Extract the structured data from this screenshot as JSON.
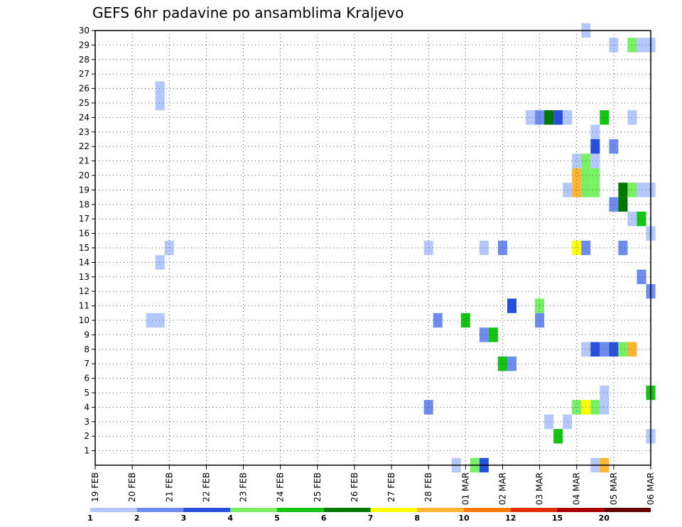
{
  "chart_data": {
    "type": "heatmap",
    "title": "GEFS 6hr padavine po ansamblima Kraljevo",
    "xlabel": "",
    "ylabel": "",
    "x_tick_labels": [
      "19 FEB",
      "20 FEB",
      "21 FEB",
      "22 FEB",
      "23 FEB",
      "24 FEB",
      "25 FEB",
      "26 FEB",
      "27 FEB",
      "28 FEB",
      "01 MAR",
      "02 MAR",
      "03 MAR",
      "04 MAR",
      "05 MAR",
      "06 MAR"
    ],
    "y_tick_labels": [
      "1",
      "2",
      "3",
      "4",
      "5",
      "6",
      "7",
      "8",
      "9",
      "10",
      "11",
      "12",
      "13",
      "14",
      "15",
      "16",
      "17",
      "18",
      "19",
      "20",
      "21",
      "22",
      "23",
      "24",
      "25",
      "26",
      "27",
      "28",
      "29",
      "30"
    ],
    "ylim": [
      0,
      30
    ],
    "grid": true,
    "colorbar": {
      "labels": [
        "1",
        "2",
        "3",
        "4",
        "5",
        "6",
        "7",
        "8",
        "10",
        "12",
        "15",
        "20"
      ],
      "colors": [
        "#b4c8ff",
        "#6e8cf0",
        "#2850dc",
        "#78f064",
        "#14c314",
        "#007800",
        "#ffff00",
        "#ffb432",
        "#ff7800",
        "#e12d00",
        "#aa0000",
        "#640000"
      ]
    },
    "cells": [
      {
        "day": 1.5,
        "member": 10,
        "color": "#b4c8ff",
        "span": 2
      },
      {
        "day": 1.75,
        "member": 25,
        "color": "#b4c8ff"
      },
      {
        "day": 1.75,
        "member": 26,
        "color": "#b4c8ff"
      },
      {
        "day": 1.75,
        "member": 14,
        "color": "#b4c8ff"
      },
      {
        "day": 2.0,
        "member": 15,
        "color": "#b4c8ff"
      },
      {
        "day": 9.0,
        "member": 15,
        "color": "#b4c8ff"
      },
      {
        "day": 9.0,
        "member": 4,
        "color": "#6e8cf0"
      },
      {
        "day": 9.25,
        "member": 10,
        "color": "#6e8cf0"
      },
      {
        "day": 9.75,
        "member": 0,
        "color": "#b4c8ff"
      },
      {
        "day": 10.0,
        "member": 10,
        "color": "#14c314"
      },
      {
        "day": 10.25,
        "member": 0,
        "color": "#78f064"
      },
      {
        "day": 10.5,
        "member": 0,
        "color": "#2850dc"
      },
      {
        "day": 10.5,
        "member": 15,
        "color": "#b4c8ff"
      },
      {
        "day": 10.5,
        "member": 9,
        "color": "#6e8cf0"
      },
      {
        "day": 10.75,
        "member": 9,
        "color": "#14c314"
      },
      {
        "day": 11.0,
        "member": 15,
        "color": "#6e8cf0"
      },
      {
        "day": 11.0,
        "member": 7,
        "color": "#14c314"
      },
      {
        "day": 11.25,
        "member": 7,
        "color": "#6e8cf0"
      },
      {
        "day": 11.25,
        "member": 11,
        "color": "#2850dc"
      },
      {
        "day": 11.75,
        "member": 24,
        "color": "#b4c8ff"
      },
      {
        "day": 12.0,
        "member": 24,
        "color": "#6e8cf0"
      },
      {
        "day": 12.0,
        "member": 11,
        "color": "#78f064"
      },
      {
        "day": 12.0,
        "member": 10,
        "color": "#6e8cf0"
      },
      {
        "day": 12.25,
        "member": 24,
        "color": "#007800"
      },
      {
        "day": 12.25,
        "member": 3,
        "color": "#b4c8ff"
      },
      {
        "day": 12.5,
        "member": 24,
        "color": "#2850dc"
      },
      {
        "day": 12.5,
        "member": 2,
        "color": "#14c314"
      },
      {
        "day": 12.75,
        "member": 24,
        "color": "#b4c8ff"
      },
      {
        "day": 12.75,
        "member": 3,
        "color": "#b4c8ff"
      },
      {
        "day": 13.0,
        "member": 15,
        "color": "#ffff00"
      },
      {
        "day": 13.0,
        "member": 4,
        "color": "#78f064"
      },
      {
        "day": 13.0,
        "member": 20,
        "color": "#ffb432"
      },
      {
        "day": 13.0,
        "member": 19,
        "color": "#ffb432"
      },
      {
        "day": 13.0,
        "member": 21,
        "color": "#b4c8ff"
      },
      {
        "day": 12.75,
        "member": 19,
        "color": "#b4c8ff"
      },
      {
        "day": 13.25,
        "member": 30,
        "color": "#b4c8ff"
      },
      {
        "day": 13.25,
        "member": 15,
        "color": "#6e8cf0"
      },
      {
        "day": 13.25,
        "member": 8,
        "color": "#b4c8ff"
      },
      {
        "day": 13.25,
        "member": 4,
        "color": "#ffff00"
      },
      {
        "day": 13.25,
        "member": 21,
        "color": "#78f064"
      },
      {
        "day": 13.25,
        "member": 20,
        "color": "#78f064"
      },
      {
        "day": 13.25,
        "member": 19,
        "color": "#78f064"
      },
      {
        "day": 13.5,
        "member": 23,
        "color": "#b4c8ff"
      },
      {
        "day": 13.5,
        "member": 22,
        "color": "#2850dc"
      },
      {
        "day": 13.5,
        "member": 21,
        "color": "#b4c8ff"
      },
      {
        "day": 13.5,
        "member": 20,
        "color": "#78f064"
      },
      {
        "day": 13.5,
        "member": 19,
        "color": "#78f064"
      },
      {
        "day": 13.5,
        "member": 8,
        "color": "#2850dc"
      },
      {
        "day": 13.5,
        "member": 4,
        "color": "#78f064"
      },
      {
        "day": 13.5,
        "member": 0,
        "color": "#b4c8ff"
      },
      {
        "day": 13.75,
        "member": 24,
        "color": "#14c314"
      },
      {
        "day": 13.75,
        "member": 8,
        "color": "#6e8cf0"
      },
      {
        "day": 13.75,
        "member": 5,
        "color": "#b4c8ff"
      },
      {
        "day": 13.75,
        "member": 4,
        "color": "#b4c8ff"
      },
      {
        "day": 13.75,
        "member": 0,
        "color": "#ffb432"
      },
      {
        "day": 14.0,
        "member": 29,
        "color": "#b4c8ff"
      },
      {
        "day": 14.0,
        "member": 22,
        "color": "#6e8cf0"
      },
      {
        "day": 14.0,
        "member": 18,
        "color": "#6e8cf0"
      },
      {
        "day": 14.0,
        "member": 8,
        "color": "#2850dc"
      },
      {
        "day": 14.25,
        "member": 18,
        "color": "#007800"
      },
      {
        "day": 14.25,
        "member": 19,
        "color": "#007800"
      },
      {
        "day": 14.25,
        "member": 15,
        "color": "#6e8cf0"
      },
      {
        "day": 14.25,
        "member": 8,
        "color": "#78f064"
      },
      {
        "day": 14.5,
        "member": 29,
        "color": "#78f064"
      },
      {
        "day": 14.5,
        "member": 24,
        "color": "#b4c8ff"
      },
      {
        "day": 14.5,
        "member": 19,
        "color": "#78f064"
      },
      {
        "day": 14.5,
        "member": 17,
        "color": "#b4c8ff"
      },
      {
        "day": 14.5,
        "member": 8,
        "color": "#ffb432"
      },
      {
        "day": 14.75,
        "member": 29,
        "color": "#b4c8ff"
      },
      {
        "day": 14.75,
        "member": 19,
        "color": "#b4c8ff"
      },
      {
        "day": 14.75,
        "member": 17,
        "color": "#14c314"
      },
      {
        "day": 14.75,
        "member": 13,
        "color": "#6e8cf0"
      },
      {
        "day": 15.0,
        "member": 29,
        "color": "#b4c8ff"
      },
      {
        "day": 15.0,
        "member": 19,
        "color": "#b4c8ff"
      },
      {
        "day": 15.0,
        "member": 16,
        "color": "#b4c8ff"
      },
      {
        "day": 15.0,
        "member": 12,
        "color": "#6e8cf0"
      },
      {
        "day": 15.0,
        "member": 5,
        "color": "#14c314"
      },
      {
        "day": 15.0,
        "member": 2,
        "color": "#b4c8ff"
      }
    ]
  }
}
